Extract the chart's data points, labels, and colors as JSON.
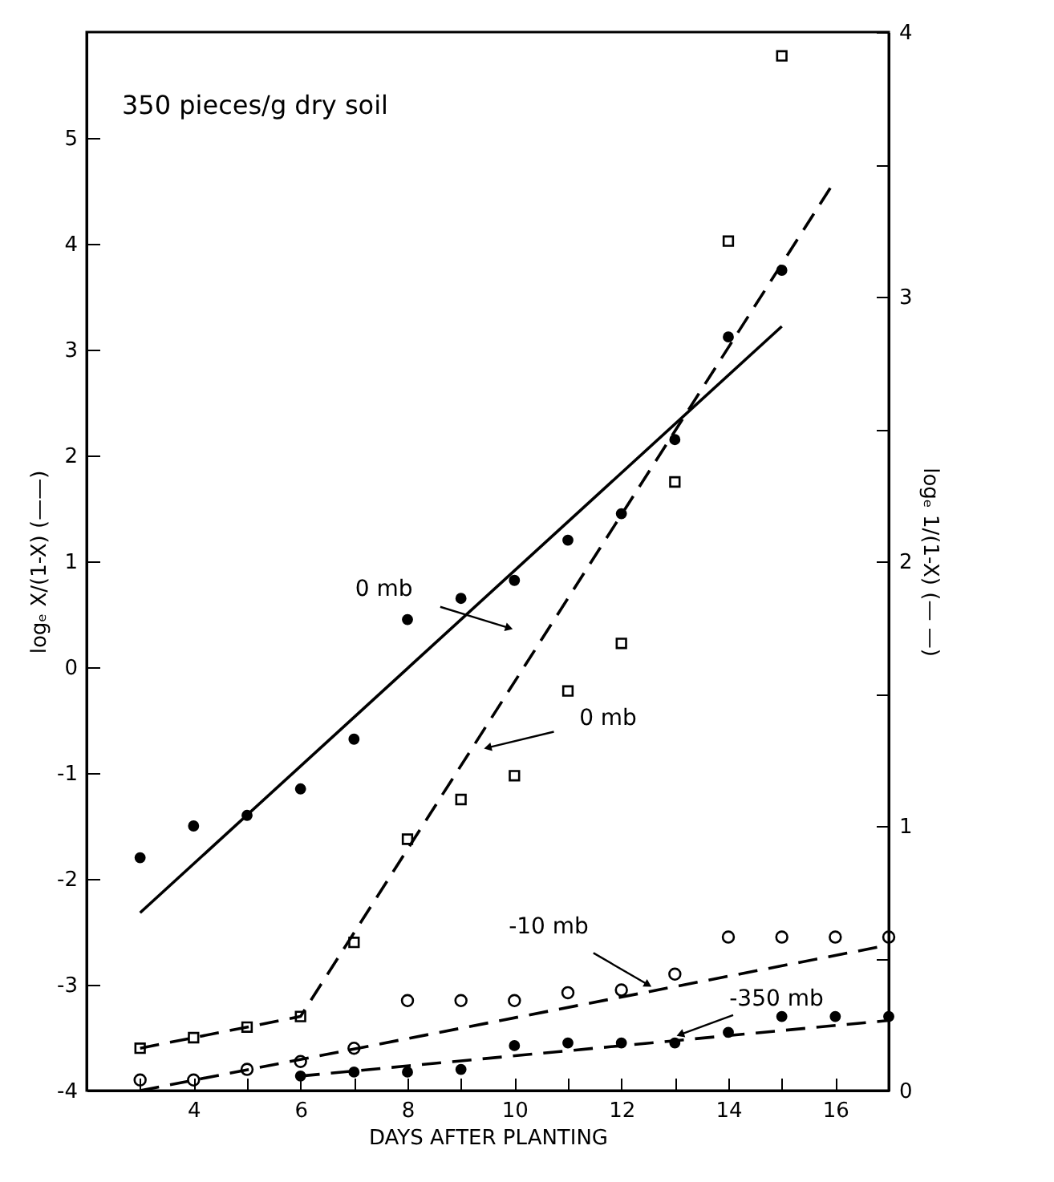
{
  "chart_data": {
    "type": "scatter",
    "xlabel": "DAYS AFTER PLANTING",
    "ylabel": "logₑ X/(1-X) (——)",
    "y2label": "logₑ 1/(1-X) (— —)",
    "xlim": [
      2,
      17
    ],
    "ylim": [
      -4,
      6
    ],
    "y2lim": [
      0,
      4
    ],
    "xticks": [
      {
        "value": 3,
        "label": null
      },
      4,
      {
        "value": 5,
        "label": null
      },
      6,
      {
        "value": 7,
        "label": null
      },
      8,
      {
        "value": 9,
        "label": null
      },
      10,
      {
        "value": 11,
        "label": null
      },
      12,
      {
        "value": 13,
        "label": null
      },
      14,
      {
        "value": 15,
        "label": null
      },
      16,
      {
        "value": 17,
        "label": null
      }
    ],
    "yticks": [
      -4,
      -3,
      -2,
      -1,
      0,
      1,
      2,
      3,
      4,
      5
    ],
    "y2ticks": [
      0,
      {
        "value": 0.5,
        "label": null
      },
      1,
      {
        "value": 1.5,
        "label": null
      },
      2,
      {
        "value": 2.5,
        "label": null
      },
      3,
      {
        "value": 3.5,
        "label": null
      },
      4
    ],
    "grid": false,
    "annotations": [
      "350 pieces/g dry soil",
      {
        "text": "0 mb",
        "x": 9.9,
        "y": 0.37
      },
      {
        "text": "0 mb",
        "x": 9.5,
        "y": -0.76
      },
      {
        "text": "-10 mb",
        "x": 12.5,
        "y": -3.0
      },
      {
        "text": "-350 mb",
        "x": 13.1,
        "y": -3.47
      }
    ],
    "series": [
      {
        "type": "scatter",
        "marker": "circle",
        "color": "#000000",
        "x": [
          3,
          4,
          5,
          6,
          7,
          8,
          9,
          10,
          11,
          12,
          13,
          14,
          15
        ],
        "values": [
          -1.8,
          -1.5,
          -1.4,
          -1.15,
          -0.68,
          0.45,
          0.65,
          0.82,
          1.2,
          1.45,
          2.15,
          3.12,
          3.75
        ]
      },
      {
        "type": "line",
        "line_style": "solid",
        "color": "#000000",
        "x": [
          3,
          15
        ],
        "values": [
          -2.32,
          3.22
        ]
      },
      {
        "type": "scatter",
        "marker": "square",
        "axis": "y2",
        "color": "#000000",
        "x": [
          3,
          4,
          5,
          6,
          7,
          8,
          9,
          10,
          11,
          12,
          13,
          14,
          15
        ],
        "values": [
          0.16,
          0.2,
          0.24,
          0.28,
          0.56,
          0.95,
          1.1,
          1.19,
          1.51,
          1.69,
          2.3,
          3.21,
          3.91
        ]
      },
      {
        "type": "line",
        "line_style": "dashed",
        "axis": "y2",
        "color": "#000000",
        "x": [
          3,
          6,
          16
        ],
        "values": [
          0.16,
          0.28,
          3.44
        ]
      },
      {
        "type": "scatter",
        "marker": "circle",
        "axis": "y2",
        "color": "#000000",
        "x": [
          3,
          4,
          5,
          6,
          7,
          8,
          9,
          10,
          11,
          12,
          13,
          14,
          15,
          16,
          17
        ],
        "values": [
          0.04,
          0.04,
          0.08,
          0.11,
          0.16,
          0.34,
          0.34,
          0.34,
          0.37,
          0.38,
          0.44,
          0.58,
          0.58,
          0.58,
          0.58
        ]
      },
      {
        "type": "line",
        "line_style": "dashed",
        "axis": "y2",
        "color": "#000000",
        "x": [
          3,
          17
        ],
        "values": [
          0.0,
          0.55
        ]
      },
      {
        "type": "scatter",
        "marker": "circle",
        "axis": "y2",
        "color": "#000000",
        "x": [
          6,
          7,
          8,
          9,
          10,
          11,
          12,
          13,
          14,
          15,
          16,
          17
        ],
        "values": [
          0.055,
          0.07,
          0.07,
          0.08,
          0.17,
          0.18,
          0.18,
          0.18,
          0.22,
          0.28,
          0.28,
          0.28
        ]
      },
      {
        "type": "line",
        "line_style": "dashed",
        "axis": "y2",
        "color": "#000000",
        "x": [
          6,
          17
        ],
        "values": [
          0.055,
          0.265
        ]
      }
    ]
  }
}
